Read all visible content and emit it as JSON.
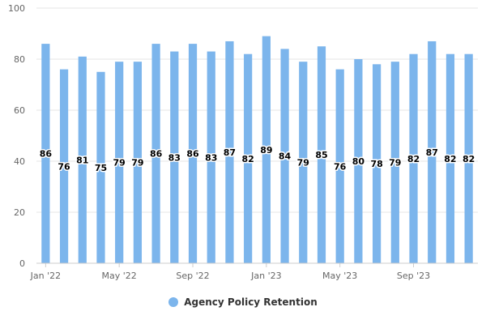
{
  "chart_data": {
    "type": "bar",
    "categories": [
      "Jan '22",
      "Feb '22",
      "Mar '22",
      "Apr '22",
      "May '22",
      "Jun '22",
      "Jul '22",
      "Aug '22",
      "Sep '22",
      "Oct '22",
      "Nov '22",
      "Dec '22",
      "Jan '23",
      "Feb '23",
      "Mar '23",
      "Apr '23",
      "May '23",
      "Jun '23",
      "Jul '23",
      "Aug '23",
      "Sep '23",
      "Oct '23",
      "Nov '23",
      "Dec '23"
    ],
    "x_tick_labels": [
      "Jan '22",
      "May '22",
      "Sep '22",
      "Jan '23",
      "May '23",
      "Sep '23"
    ],
    "series": [
      {
        "name": "Agency Policy Retention",
        "values": [
          86,
          76,
          81,
          75,
          79,
          79,
          86,
          83,
          86,
          83,
          87,
          82,
          89,
          84,
          79,
          85,
          76,
          80,
          78,
          79,
          82,
          87,
          82,
          82
        ],
        "color": "#7cb5ec"
      }
    ],
    "ylim": [
      0,
      100
    ],
    "y_ticks": [
      0,
      20,
      40,
      60,
      80,
      100
    ],
    "grid": true,
    "legend_position": "bottom-center",
    "data_labels": true
  }
}
